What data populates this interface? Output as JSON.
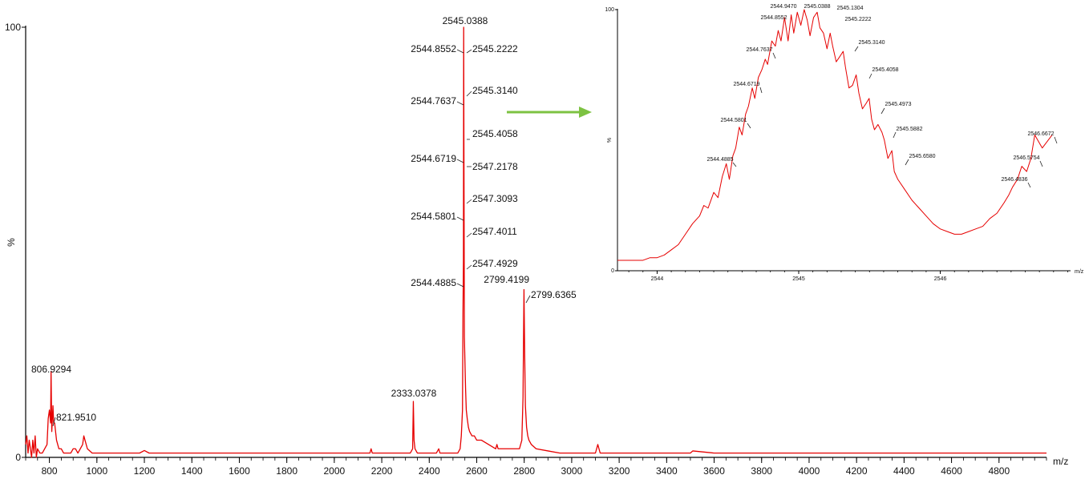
{
  "chart_data": [
    {
      "type": "line",
      "title": "",
      "xlabel": "m/z",
      "ylabel": "%",
      "xlim": [
        700,
        5000
      ],
      "ylim": [
        0,
        100
      ],
      "xticks_major": [
        800,
        1000,
        1200,
        1400,
        1600,
        1800,
        2000,
        2200,
        2400,
        2600,
        2800,
        3000,
        3200,
        3400,
        3600,
        3800,
        4000,
        4200,
        4400,
        4600,
        4800
      ],
      "y_tick_labels": [
        "0",
        "100"
      ],
      "series_color": "#e60000",
      "series": [
        {
          "name": "",
          "x": [
            700,
            705,
            710,
            715,
            720,
            725,
            730,
            735,
            740,
            745,
            750,
            760,
            770,
            780,
            790,
            795,
            800,
            805,
            807,
            810,
            815,
            818,
            822,
            826,
            830,
            840,
            850,
            860,
            870,
            880,
            890,
            900,
            910,
            920,
            930,
            940,
            945,
            950,
            955,
            960,
            980,
            1000,
            1050,
            1100,
            1150,
            1180,
            1200,
            1220,
            1300,
            1400,
            1500,
            1600,
            1700,
            1800,
            1900,
            2000,
            2100,
            2150,
            2155,
            2160,
            2200,
            2300,
            2320,
            2330,
            2333,
            2336,
            2340,
            2350,
            2400,
            2430,
            2440,
            2445,
            2450,
            2500,
            2520,
            2530,
            2535,
            2540,
            2542,
            2544,
            2545,
            2546,
            2548,
            2550,
            2553,
            2556,
            2560,
            2565,
            2570,
            2580,
            2590,
            2600,
            2620,
            2650,
            2680,
            2685,
            2690,
            2700,
            2750,
            2780,
            2790,
            2795,
            2799,
            2802,
            2805,
            2810,
            2815,
            2820,
            2830,
            2850,
            2900,
            2950,
            3000,
            3050,
            3100,
            3110,
            3115,
            3120,
            3150,
            3200,
            3300,
            3400,
            3500,
            3510,
            3600,
            3700,
            3800,
            3900,
            4000,
            4200,
            4400,
            4600,
            4800,
            5000
          ],
          "values": [
            3,
            5,
            1,
            4,
            2,
            0,
            4,
            1,
            5,
            0,
            2,
            1,
            1,
            2,
            3,
            9,
            11,
            8,
            20,
            6,
            12,
            8,
            8,
            6,
            4,
            2,
            2,
            1,
            1,
            1,
            1,
            2,
            2,
            1,
            2,
            3,
            5,
            4,
            3,
            2,
            1,
            1,
            1,
            1,
            1,
            1,
            1.6,
            1,
            1,
            1,
            1,
            1,
            1,
            1,
            1,
            1,
            1,
            1,
            2,
            1,
            1,
            1,
            1,
            2,
            13,
            4,
            2,
            1,
            1,
            1,
            2,
            1,
            1,
            1,
            1,
            2,
            5,
            11,
            33,
            46,
            100,
            74,
            28,
            23,
            16,
            11,
            9,
            7,
            6,
            5,
            5,
            4,
            4,
            3,
            2,
            3,
            2,
            2,
            2,
            2,
            4,
            14,
            39,
            24,
            12,
            7,
            5,
            4,
            3,
            2,
            1.5,
            1,
            1,
            1,
            1,
            3,
            2,
            1,
            1,
            1,
            1,
            1,
            1,
            1.5,
            1,
            1,
            1,
            1,
            1,
            1,
            1,
            1,
            1,
            1
          ]
        }
      ],
      "peak_labels": [
        {
          "label": "2545.0388",
          "x": 2545.0388,
          "y": 100
        },
        {
          "label": "2544.8552",
          "x": 2544.8552,
          "y": 95
        },
        {
          "label": "2545.2222",
          "x": 2545.2222,
          "y": 95
        },
        {
          "label": "2544.7637",
          "x": 2544.7637,
          "y": 83
        },
        {
          "label": "2545.3140",
          "x": 2545.314,
          "y": 85
        },
        {
          "label": "2545.4058",
          "x": 2545.4058,
          "y": 75
        },
        {
          "label": "2544.6719",
          "x": 2544.6719,
          "y": 69
        },
        {
          "label": "2547.2178",
          "x": 2547.2178,
          "y": 67
        },
        {
          "label": "2547.3093",
          "x": 2547.3093,
          "y": 59
        },
        {
          "label": "2544.5801",
          "x": 2544.5801,
          "y": 55
        },
        {
          "label": "2547.4011",
          "x": 2547.4011,
          "y": 51
        },
        {
          "label": "2547.4929",
          "x": 2547.4929,
          "y": 44
        },
        {
          "label": "2544.4885",
          "x": 2544.4885,
          "y": 40
        },
        {
          "label": "2799.4199",
          "x": 2799.4199,
          "y": 39
        },
        {
          "label": "2799.6365",
          "x": 2799.6365,
          "y": 37
        },
        {
          "label": "2333.0378",
          "x": 2333.0378,
          "y": 13
        },
        {
          "label": "806.9294",
          "x": 806.9294,
          "y": 20
        },
        {
          "label": "821.9510",
          "x": 821.951,
          "y": 8
        }
      ]
    },
    {
      "type": "line",
      "title": "",
      "xlabel": "m/z",
      "ylabel": "%",
      "xlim": [
        2543.72,
        2546.92
      ],
      "ylim": [
        0,
        100
      ],
      "xticks_major": [
        2544,
        2545,
        2546
      ],
      "y_tick_labels": [
        "0",
        "100"
      ],
      "series_color": "#e60000",
      "series": [
        {
          "name": "",
          "x": [
            2543.72,
            2543.8,
            2543.9,
            2543.95,
            2544.0,
            2544.05,
            2544.1,
            2544.15,
            2544.2,
            2544.25,
            2544.3,
            2544.33,
            2544.36,
            2544.4,
            2544.43,
            2544.46,
            2544.4885,
            2544.51,
            2544.535,
            2544.555,
            2544.5801,
            2544.6,
            2544.625,
            2544.645,
            2544.6719,
            2544.69,
            2544.715,
            2544.74,
            2544.7637,
            2544.78,
            2544.81,
            2544.835,
            2544.8552,
            2544.875,
            2544.9,
            2544.925,
            2544.947,
            2544.965,
            2544.99,
            2545.015,
            2545.0388,
            2545.06,
            2545.08,
            2545.105,
            2545.1304,
            2545.15,
            2545.175,
            2545.2,
            2545.2222,
            2545.24,
            2545.265,
            2545.29,
            2545.314,
            2545.33,
            2545.355,
            2545.38,
            2545.4058,
            2545.425,
            2545.45,
            2545.475,
            2545.4973,
            2545.515,
            2545.535,
            2545.56,
            2545.5882,
            2545.605,
            2545.63,
            2545.658,
            2545.675,
            2545.7,
            2545.75,
            2545.8,
            2545.85,
            2545.9,
            2545.95,
            2546.0,
            2546.05,
            2546.1,
            2546.15,
            2546.2,
            2546.25,
            2546.3,
            2546.35,
            2546.4,
            2546.45,
            2546.4836,
            2546.51,
            2546.545,
            2546.5754,
            2546.61,
            2546.64,
            2546.6672,
            2546.72,
            2546.79
          ],
          "values": [
            4,
            4,
            4,
            5,
            5,
            6,
            8,
            10,
            14,
            18,
            21,
            25,
            24,
            30,
            28,
            36,
            41,
            35,
            44,
            47,
            55,
            52,
            60,
            63,
            70,
            66,
            74,
            77,
            81,
            79,
            88,
            86,
            92,
            88,
            97,
            88,
            98,
            91,
            99,
            94,
            100,
            96,
            90,
            97,
            99,
            93,
            91,
            85,
            91,
            86,
            80,
            82,
            84,
            78,
            70,
            71,
            75,
            68,
            62,
            64,
            66,
            58,
            54,
            56,
            53,
            50,
            43,
            46,
            38,
            35,
            31,
            27,
            24,
            21,
            18,
            16,
            15,
            14,
            14,
            15,
            16,
            17,
            20,
            22,
            26,
            29,
            32,
            35,
            40,
            38,
            43,
            52,
            47,
            52
          ]
        }
      ],
      "peak_labels": [
        {
          "label": "2544.4885",
          "x": 2544.4885,
          "y": 41
        },
        {
          "label": "2544.5801",
          "x": 2544.5801,
          "y": 55
        },
        {
          "label": "2544.6719",
          "x": 2544.6719,
          "y": 70
        },
        {
          "label": "2544.7637",
          "x": 2544.7637,
          "y": 81
        },
        {
          "label": "2544.8552",
          "x": 2544.8552,
          "y": 92
        },
        {
          "label": "2544.9470",
          "x": 2544.947,
          "y": 98
        },
        {
          "label": "2545.0388",
          "x": 2545.0388,
          "y": 100
        },
        {
          "label": "2545.1304",
          "x": 2545.1304,
          "y": 99
        },
        {
          "label": "2545.2222",
          "x": 2545.2222,
          "y": 91
        },
        {
          "label": "2545.3140",
          "x": 2545.314,
          "y": 84
        },
        {
          "label": "2545.4058",
          "x": 2545.4058,
          "y": 75
        },
        {
          "label": "2545.4973",
          "x": 2545.4973,
          "y": 66
        },
        {
          "label": "2545.5882",
          "x": 2545.5882,
          "y": 53
        },
        {
          "label": "2545.6580",
          "x": 2545.658,
          "y": 46
        },
        {
          "label": "2546.4836",
          "x": 2546.4836,
          "y": 32
        },
        {
          "label": "2546.5754",
          "x": 2546.5754,
          "y": 40
        },
        {
          "label": "2546.6672",
          "x": 2546.6672,
          "y": 52
        }
      ]
    }
  ],
  "arrow_color": "#7dc242"
}
